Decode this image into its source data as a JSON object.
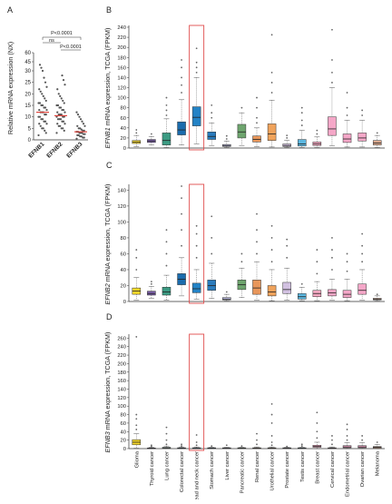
{
  "chart_data": [
    {
      "panel": "A",
      "type": "scatter",
      "categories": [
        "EFNB1",
        "EFNB2",
        "EFNB3"
      ],
      "ylabel": "Relative mRNA expression (NX)",
      "ylim": [
        0,
        60
      ],
      "yticks": [
        "0",
        "5",
        "10",
        "15",
        "20",
        "25",
        "30",
        "45",
        "60"
      ],
      "medians": [
        12,
        10.5,
        3.5
      ],
      "median_color": "#e0473f",
      "point_color": "#555555",
      "annotations": [
        "P<0.0001",
        "ns",
        "P<0.0001"
      ]
    },
    {
      "panel": "B",
      "type": "box",
      "ylabel_gene": "EFNB1",
      "ylabel_rest": " mRNA expression, TCGA (FPKM)",
      "ylim": [
        0,
        240
      ],
      "yticks": [
        "0",
        "20",
        "40",
        "60",
        "80",
        "100",
        "120",
        "140",
        "160",
        "180",
        "200",
        "220",
        "240"
      ],
      "highlight_index": 4,
      "boxes": [
        {
          "q1": 9,
          "med": 12,
          "q3": 15,
          "lo": 3,
          "hi": 25,
          "out": [
            30,
            36
          ]
        },
        {
          "q1": 11,
          "med": 14,
          "q3": 17,
          "lo": 6,
          "hi": 23,
          "out": [
            28
          ]
        },
        {
          "q1": 6,
          "med": 15,
          "q3": 30,
          "lo": 1,
          "hi": 58,
          "out": [
            65,
            75,
            85,
            100
          ]
        },
        {
          "q1": 26,
          "med": 36,
          "q3": 52,
          "lo": 6,
          "hi": 96,
          "out": [
            110,
            125,
            140,
            160,
            175
          ]
        },
        {
          "q1": 44,
          "med": 61,
          "q3": 82,
          "lo": 8,
          "hi": 140,
          "out": [
            150,
            160,
            170,
            198
          ]
        },
        {
          "q1": 17,
          "med": 23,
          "q3": 32,
          "lo": 5,
          "hi": 50,
          "out": [
            60,
            70,
            85
          ]
        },
        {
          "q1": 3,
          "med": 5,
          "q3": 7,
          "lo": 1,
          "hi": 14,
          "out": [
            18,
            24
          ]
        },
        {
          "q1": 20,
          "med": 32,
          "q3": 47,
          "lo": 5,
          "hi": 70,
          "out": [
            80
          ]
        },
        {
          "q1": 12,
          "med": 17,
          "q3": 24,
          "lo": 3,
          "hi": 40,
          "out": [
            50,
            60,
            80,
            100
          ]
        },
        {
          "q1": 15,
          "med": 28,
          "q3": 48,
          "lo": 2,
          "hi": 95,
          "out": [
            110,
            130,
            150,
            225
          ]
        },
        {
          "q1": 3,
          "med": 5,
          "q3": 8,
          "lo": 1,
          "hi": 15,
          "out": [
            20,
            25
          ]
        },
        {
          "q1": 4,
          "med": 8,
          "q3": 17,
          "lo": 1,
          "hi": 35,
          "out": [
            45,
            55,
            70,
            80
          ]
        },
        {
          "q1": 5,
          "med": 8,
          "q3": 12,
          "lo": 1,
          "hi": 22,
          "out": [
            28,
            35
          ]
        },
        {
          "q1": 25,
          "med": 38,
          "q3": 62,
          "lo": 5,
          "hi": 120,
          "out": [
            130,
            150,
            175,
            235
          ]
        },
        {
          "q1": 11,
          "med": 18,
          "q3": 28,
          "lo": 2,
          "hi": 55,
          "out": [
            65,
            80,
            110
          ]
        },
        {
          "q1": 14,
          "med": 20,
          "q3": 30,
          "lo": 2,
          "hi": 55,
          "out": [
            65,
            75
          ]
        },
        {
          "q1": 6,
          "med": 10,
          "q3": 15,
          "lo": 1,
          "hi": 25,
          "out": [
            30
          ]
        }
      ]
    },
    {
      "panel": "C",
      "type": "box",
      "ylabel_gene": "EFNB2",
      "ylabel_rest": " mRNA expression, TCGA (FPKM)",
      "ylim": [
        0,
        145
      ],
      "yticks": [
        "0",
        "20",
        "40",
        "60",
        "80",
        "100",
        "120",
        "140"
      ],
      "highlight_index": 4,
      "boxes": [
        {
          "q1": 9,
          "med": 13,
          "q3": 17,
          "lo": 2,
          "hi": 30,
          "out": [
            40,
            55,
            65
          ]
        },
        {
          "q1": 8,
          "med": 10,
          "q3": 13,
          "lo": 4,
          "hi": 19,
          "out": [
            22,
            25
          ]
        },
        {
          "q1": 8,
          "med": 12,
          "q3": 18,
          "lo": 2,
          "hi": 33,
          "out": [
            45,
            60,
            75,
            90
          ]
        },
        {
          "q1": 21,
          "med": 28,
          "q3": 35,
          "lo": 7,
          "hi": 55,
          "out": [
            70,
            90,
            110,
            130,
            145
          ]
        },
        {
          "q1": 11,
          "med": 16,
          "q3": 23,
          "lo": 3,
          "hi": 40,
          "out": [
            55,
            70,
            85,
            95
          ]
        },
        {
          "q1": 14,
          "med": 20,
          "q3": 27,
          "lo": 4,
          "hi": 48,
          "out": [
            60,
            80,
            107
          ]
        },
        {
          "q1": 2,
          "med": 3,
          "q3": 5,
          "lo": 0.5,
          "hi": 9,
          "out": [
            12
          ]
        },
        {
          "q1": 15,
          "med": 21,
          "q3": 27,
          "lo": 5,
          "hi": 42,
          "out": [
            50,
            60
          ]
        },
        {
          "q1": 9,
          "med": 17,
          "q3": 27,
          "lo": 2,
          "hi": 50,
          "out": [
            60,
            75,
            90,
            110
          ]
        },
        {
          "q1": 7,
          "med": 12,
          "q3": 20,
          "lo": 1,
          "hi": 40,
          "out": [
            50,
            65,
            80,
            95
          ]
        },
        {
          "q1": 10,
          "med": 15,
          "q3": 24,
          "lo": 2,
          "hi": 42,
          "out": [
            55,
            70,
            78
          ]
        },
        {
          "q1": 3,
          "med": 6,
          "q3": 10,
          "lo": 1,
          "hi": 18,
          "out": [
            22
          ]
        },
        {
          "q1": 6,
          "med": 10,
          "q3": 14,
          "lo": 1,
          "hi": 25,
          "out": [
            35,
            50,
            65
          ]
        },
        {
          "q1": 7,
          "med": 11,
          "q3": 15,
          "lo": 2,
          "hi": 28,
          "out": [
            40,
            55,
            65,
            80
          ]
        },
        {
          "q1": 5,
          "med": 9,
          "q3": 14,
          "lo": 1,
          "hi": 28,
          "out": [
            38,
            50,
            60
          ]
        },
        {
          "q1": 9,
          "med": 14,
          "q3": 22,
          "lo": 2,
          "hi": 40,
          "out": [
            50,
            60,
            70,
            85
          ]
        },
        {
          "q1": 2,
          "med": 3,
          "q3": 4,
          "lo": 0.5,
          "hi": 7,
          "out": [
            9
          ]
        }
      ]
    },
    {
      "panel": "D",
      "type": "box",
      "ylabel_gene": "EFNB3",
      "ylabel_rest": " mRNA expression, TCGA (FPKM)",
      "ylim": [
        0,
        265
      ],
      "yticks": [
        "0",
        "20",
        "40",
        "60",
        "80",
        "100",
        "120",
        "140",
        "160",
        "180",
        "200",
        "220",
        "240",
        "260"
      ],
      "highlight_index": 4,
      "boxes": [
        {
          "q1": 9,
          "med": 15,
          "q3": 21,
          "lo": 1,
          "hi": 35,
          "out": [
            45,
            55,
            70,
            80,
            263
          ]
        },
        {
          "q1": 0.5,
          "med": 1,
          "q3": 1.5,
          "lo": 0,
          "hi": 3,
          "out": [
            5,
            8
          ]
        },
        {
          "q1": 1,
          "med": 2,
          "q3": 3,
          "lo": 0,
          "hi": 6,
          "out": [
            10,
            20,
            35,
            50
          ]
        },
        {
          "q1": 0.5,
          "med": 1,
          "q3": 2,
          "lo": 0,
          "hi": 4,
          "out": [
            6,
            10
          ]
        },
        {
          "q1": 0.5,
          "med": 1,
          "q3": 2,
          "lo": 0,
          "hi": 4,
          "out": [
            8,
            15,
            32
          ]
        },
        {
          "q1": 0.5,
          "med": 1,
          "q3": 2,
          "lo": 0,
          "hi": 3,
          "out": [
            6
          ]
        },
        {
          "q1": 0.5,
          "med": 1,
          "q3": 2,
          "lo": 0,
          "hi": 3,
          "out": [
            8
          ]
        },
        {
          "q1": 0.5,
          "med": 1,
          "q3": 2,
          "lo": 0,
          "hi": 3,
          "out": [
            6
          ]
        },
        {
          "q1": 0.5,
          "med": 1,
          "q3": 2,
          "lo": 0,
          "hi": 4,
          "out": [
            10,
            20,
            35
          ]
        },
        {
          "q1": 0.5,
          "med": 1,
          "q3": 2,
          "lo": 0,
          "hi": 4,
          "out": [
            8,
            15,
            30,
            60,
            80,
            105
          ]
        },
        {
          "q1": 0.5,
          "med": 1,
          "q3": 2,
          "lo": 0,
          "hi": 3,
          "out": [
            5
          ]
        },
        {
          "q1": 0.5,
          "med": 1,
          "q3": 2,
          "lo": 0,
          "hi": 3,
          "out": [
            6,
            10
          ]
        },
        {
          "q1": 3,
          "med": 5,
          "q3": 8,
          "lo": 0,
          "hi": 15,
          "out": [
            25,
            40,
            60,
            85
          ]
        },
        {
          "q1": 0.5,
          "med": 1,
          "q3": 2,
          "lo": 0,
          "hi": 4,
          "out": [
            10,
            20,
            30
          ]
        },
        {
          "q1": 2,
          "med": 4,
          "q3": 7,
          "lo": 0,
          "hi": 14,
          "out": [
            20,
            30,
            45,
            57
          ]
        },
        {
          "q1": 2,
          "med": 4,
          "q3": 7,
          "lo": 0,
          "hi": 14,
          "out": [
            20,
            30
          ]
        },
        {
          "q1": 1,
          "med": 3,
          "q3": 5,
          "lo": 0,
          "hi": 10,
          "out": [
            15
          ]
        }
      ]
    }
  ],
  "panel_letters": [
    "A",
    "B",
    "C",
    "D"
  ],
  "box_colors": [
    "#f4d62a",
    "#7b5ea7",
    "#3c9b83",
    "#1b6cad",
    "#2383c6",
    "#2a7bbd",
    "#b6b6dc",
    "#6ea56e",
    "#e8965a",
    "#f0a35b",
    "#d2c1e1",
    "#5cb7e0",
    "#f5a8c2",
    "#f5a7c8",
    "#f5a7c8",
    "#f5a7c8",
    "#dba88d"
  ],
  "highlight_color": "#e04b4b",
  "cancer_types": [
    "Glioma",
    "Thyroid cancer",
    "Lung cancer",
    "Colorectal cancer",
    "Head and neck cancer",
    "Stomach cancer",
    "Liver cancer",
    "Pancreatic cancer",
    "Renal cancer",
    "Urothelial cancer",
    "Prostate cancer",
    "Testis cancer",
    "Breast cancer",
    "Cervical cancer",
    "Endometrial cancer",
    "Ovarian cancer",
    "Melanoma"
  ]
}
